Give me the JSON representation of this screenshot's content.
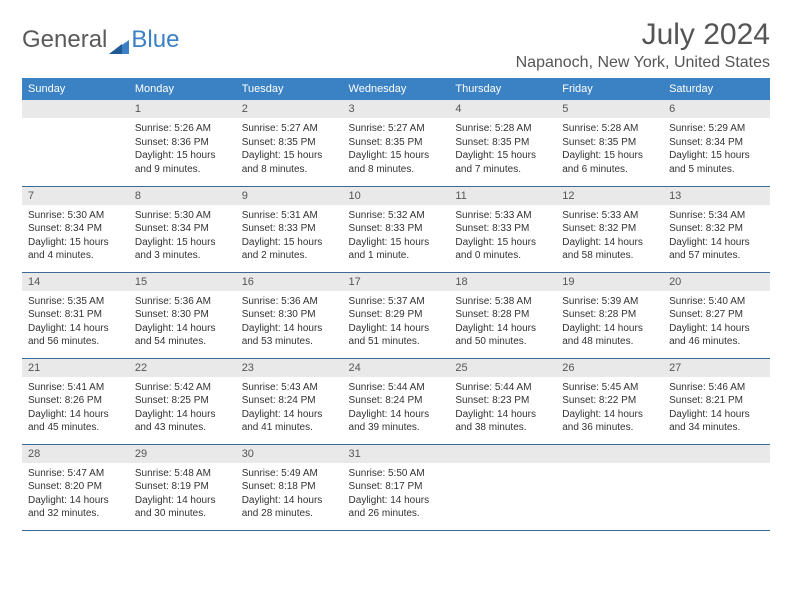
{
  "brand": {
    "part1": "General",
    "part2": "Blue"
  },
  "title": "July 2024",
  "location": "Napanoch, New York, United States",
  "colors": {
    "header_bg": "#3b82c4",
    "header_text": "#ffffff",
    "daynum_bg": "#e9e9e9",
    "text": "#333333",
    "rule": "#3b6a9a",
    "brand_blue": "#3b7fc4"
  },
  "weekdays": [
    "Sunday",
    "Monday",
    "Tuesday",
    "Wednesday",
    "Thursday",
    "Friday",
    "Saturday"
  ],
  "start_weekday": 1,
  "days": [
    {
      "n": 1,
      "sunrise": "5:26 AM",
      "sunset": "8:36 PM",
      "daylight": "15 hours and 9 minutes."
    },
    {
      "n": 2,
      "sunrise": "5:27 AM",
      "sunset": "8:35 PM",
      "daylight": "15 hours and 8 minutes."
    },
    {
      "n": 3,
      "sunrise": "5:27 AM",
      "sunset": "8:35 PM",
      "daylight": "15 hours and 8 minutes."
    },
    {
      "n": 4,
      "sunrise": "5:28 AM",
      "sunset": "8:35 PM",
      "daylight": "15 hours and 7 minutes."
    },
    {
      "n": 5,
      "sunrise": "5:28 AM",
      "sunset": "8:35 PM",
      "daylight": "15 hours and 6 minutes."
    },
    {
      "n": 6,
      "sunrise": "5:29 AM",
      "sunset": "8:34 PM",
      "daylight": "15 hours and 5 minutes."
    },
    {
      "n": 7,
      "sunrise": "5:30 AM",
      "sunset": "8:34 PM",
      "daylight": "15 hours and 4 minutes."
    },
    {
      "n": 8,
      "sunrise": "5:30 AM",
      "sunset": "8:34 PM",
      "daylight": "15 hours and 3 minutes."
    },
    {
      "n": 9,
      "sunrise": "5:31 AM",
      "sunset": "8:33 PM",
      "daylight": "15 hours and 2 minutes."
    },
    {
      "n": 10,
      "sunrise": "5:32 AM",
      "sunset": "8:33 PM",
      "daylight": "15 hours and 1 minute."
    },
    {
      "n": 11,
      "sunrise": "5:33 AM",
      "sunset": "8:33 PM",
      "daylight": "15 hours and 0 minutes."
    },
    {
      "n": 12,
      "sunrise": "5:33 AM",
      "sunset": "8:32 PM",
      "daylight": "14 hours and 58 minutes."
    },
    {
      "n": 13,
      "sunrise": "5:34 AM",
      "sunset": "8:32 PM",
      "daylight": "14 hours and 57 minutes."
    },
    {
      "n": 14,
      "sunrise": "5:35 AM",
      "sunset": "8:31 PM",
      "daylight": "14 hours and 56 minutes."
    },
    {
      "n": 15,
      "sunrise": "5:36 AM",
      "sunset": "8:30 PM",
      "daylight": "14 hours and 54 minutes."
    },
    {
      "n": 16,
      "sunrise": "5:36 AM",
      "sunset": "8:30 PM",
      "daylight": "14 hours and 53 minutes."
    },
    {
      "n": 17,
      "sunrise": "5:37 AM",
      "sunset": "8:29 PM",
      "daylight": "14 hours and 51 minutes."
    },
    {
      "n": 18,
      "sunrise": "5:38 AM",
      "sunset": "8:28 PM",
      "daylight": "14 hours and 50 minutes."
    },
    {
      "n": 19,
      "sunrise": "5:39 AM",
      "sunset": "8:28 PM",
      "daylight": "14 hours and 48 minutes."
    },
    {
      "n": 20,
      "sunrise": "5:40 AM",
      "sunset": "8:27 PM",
      "daylight": "14 hours and 46 minutes."
    },
    {
      "n": 21,
      "sunrise": "5:41 AM",
      "sunset": "8:26 PM",
      "daylight": "14 hours and 45 minutes."
    },
    {
      "n": 22,
      "sunrise": "5:42 AM",
      "sunset": "8:25 PM",
      "daylight": "14 hours and 43 minutes."
    },
    {
      "n": 23,
      "sunrise": "5:43 AM",
      "sunset": "8:24 PM",
      "daylight": "14 hours and 41 minutes."
    },
    {
      "n": 24,
      "sunrise": "5:44 AM",
      "sunset": "8:24 PM",
      "daylight": "14 hours and 39 minutes."
    },
    {
      "n": 25,
      "sunrise": "5:44 AM",
      "sunset": "8:23 PM",
      "daylight": "14 hours and 38 minutes."
    },
    {
      "n": 26,
      "sunrise": "5:45 AM",
      "sunset": "8:22 PM",
      "daylight": "14 hours and 36 minutes."
    },
    {
      "n": 27,
      "sunrise": "5:46 AM",
      "sunset": "8:21 PM",
      "daylight": "14 hours and 34 minutes."
    },
    {
      "n": 28,
      "sunrise": "5:47 AM",
      "sunset": "8:20 PM",
      "daylight": "14 hours and 32 minutes."
    },
    {
      "n": 29,
      "sunrise": "5:48 AM",
      "sunset": "8:19 PM",
      "daylight": "14 hours and 30 minutes."
    },
    {
      "n": 30,
      "sunrise": "5:49 AM",
      "sunset": "8:18 PM",
      "daylight": "14 hours and 28 minutes."
    },
    {
      "n": 31,
      "sunrise": "5:50 AM",
      "sunset": "8:17 PM",
      "daylight": "14 hours and 26 minutes."
    }
  ],
  "labels": {
    "sunrise": "Sunrise:",
    "sunset": "Sunset:",
    "daylight": "Daylight:"
  }
}
